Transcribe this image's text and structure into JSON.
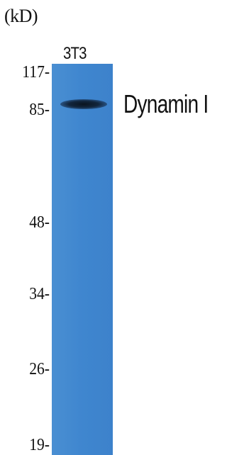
{
  "unit_label": "(kD)",
  "lane_label": "3T3",
  "markers": [
    "117-",
    "85-",
    "48-",
    "34-",
    "26-",
    "19-"
  ],
  "protein_label": "Dynamin I",
  "colors": {
    "membrane": "#3f86cf",
    "band": "#0a1420"
  }
}
